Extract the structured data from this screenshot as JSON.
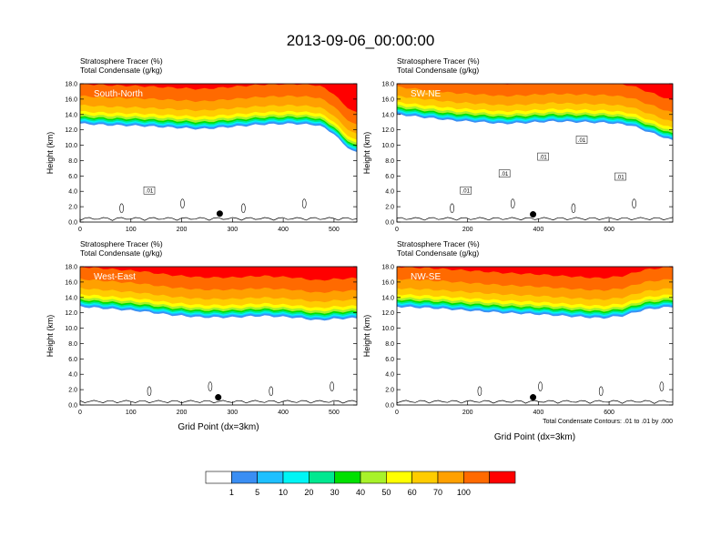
{
  "figure": {
    "title": "2013-09-06_00:00:00",
    "colorbar": {
      "labels": [
        "1",
        "5",
        "10",
        "20",
        "30",
        "40",
        "50",
        "60",
        "70",
        "100"
      ],
      "colors": [
        "#ffffff",
        "#3a8ef3",
        "#1ec0ff",
        "#00f5f5",
        "#00e890",
        "#00e000",
        "#a8f22a",
        "#ffff00",
        "#ffcc00",
        "#ffa000",
        "#ff6a00",
        "#ff0000"
      ]
    },
    "footnote": "Total Condensate Contours: .01 to .01 by .000"
  },
  "chart_data": [
    {
      "type": "contour",
      "title": "South-North",
      "subtitle_line1": "Stratosphere Tracer   (%)",
      "subtitle_line2": "Total Condensate   (g/kg)",
      "xlabel": "",
      "ylabel": "Height (km)",
      "xlim": [
        0,
        545
      ],
      "ylim": [
        0,
        18
      ],
      "xticks": [
        0,
        100,
        200,
        300,
        400,
        500
      ],
      "yticks": [
        0,
        2,
        4,
        6,
        8,
        10,
        12,
        14,
        16,
        18
      ],
      "marker": {
        "x": 275,
        "y": 1.1
      },
      "tropopause_km": [
        [
          0,
          12.8
        ],
        [
          60,
          12.6
        ],
        [
          120,
          12.5
        ],
        [
          180,
          12.3
        ],
        [
          240,
          12.1
        ],
        [
          300,
          12.4
        ],
        [
          360,
          12.7
        ],
        [
          420,
          12.8
        ],
        [
          470,
          12.6
        ],
        [
          500,
          11.5
        ],
        [
          520,
          10.0
        ],
        [
          545,
          9.0
        ]
      ],
      "labels": [
        ".01"
      ]
    },
    {
      "type": "contour",
      "title": "SW-NE",
      "subtitle_line1": "Stratosphere Tracer   (%)",
      "subtitle_line2": "Total Condensate   (g/kg)",
      "xlabel": "",
      "ylabel": "Height (km)",
      "xlim": [
        0,
        780
      ],
      "ylim": [
        0,
        18
      ],
      "xticks": [
        0,
        200,
        400,
        600
      ],
      "yticks": [
        0,
        2,
        4,
        6,
        8,
        10,
        12,
        14,
        16,
        18
      ],
      "marker": {
        "x": 385,
        "y": 1.0
      },
      "tropopause_km": [
        [
          0,
          14.0
        ],
        [
          80,
          13.6
        ],
        [
          160,
          13.2
        ],
        [
          240,
          13.0
        ],
        [
          300,
          12.8
        ],
        [
          360,
          12.9
        ],
        [
          440,
          13.1
        ],
        [
          520,
          13.0
        ],
        [
          600,
          12.9
        ],
        [
          660,
          12.6
        ],
        [
          720,
          11.6
        ],
        [
          780,
          10.6
        ]
      ],
      "labels": [
        ".01",
        ".01",
        ".01",
        ".01",
        ".01"
      ]
    },
    {
      "type": "contour",
      "title": "West-East",
      "subtitle_line1": "Stratosphere Tracer   (%)",
      "subtitle_line2": "Total Condensate   (g/kg)",
      "xlabel": "Grid Point (dx=3km)",
      "ylabel": "Height (km)",
      "xlim": [
        0,
        545
      ],
      "ylim": [
        0,
        18
      ],
      "xticks": [
        0,
        100,
        200,
        300,
        400,
        500
      ],
      "yticks": [
        0,
        2,
        4,
        6,
        8,
        10,
        12,
        14,
        16,
        18
      ],
      "marker": {
        "x": 272,
        "y": 1.0
      },
      "tropopause_km": [
        [
          0,
          12.8
        ],
        [
          60,
          12.5
        ],
        [
          120,
          12.2
        ],
        [
          180,
          11.7
        ],
        [
          240,
          11.4
        ],
        [
          300,
          11.4
        ],
        [
          360,
          11.6
        ],
        [
          420,
          11.4
        ],
        [
          470,
          11.0
        ],
        [
          500,
          11.2
        ],
        [
          545,
          11.3
        ]
      ],
      "labels": []
    },
    {
      "type": "contour",
      "title": "NW-SE",
      "subtitle_line1": "Stratosphere Tracer   (%)",
      "subtitle_line2": "Total Condensate   (g/kg)",
      "xlabel": "Grid Point (dx=3km)",
      "ylabel": "Height (km)",
      "xlim": [
        0,
        780
      ],
      "ylim": [
        0,
        18
      ],
      "xticks": [
        0,
        200,
        400,
        600
      ],
      "yticks": [
        0,
        2,
        4,
        6,
        8,
        10,
        12,
        14,
        16,
        18
      ],
      "marker": {
        "x": 385,
        "y": 1.0
      },
      "tropopause_km": [
        [
          0,
          12.8
        ],
        [
          100,
          12.6
        ],
        [
          200,
          12.3
        ],
        [
          300,
          12.0
        ],
        [
          400,
          11.8
        ],
        [
          500,
          11.5
        ],
        [
          580,
          11.3
        ],
        [
          640,
          11.6
        ],
        [
          700,
          12.4
        ],
        [
          780,
          12.8
        ]
      ],
      "labels": []
    }
  ]
}
